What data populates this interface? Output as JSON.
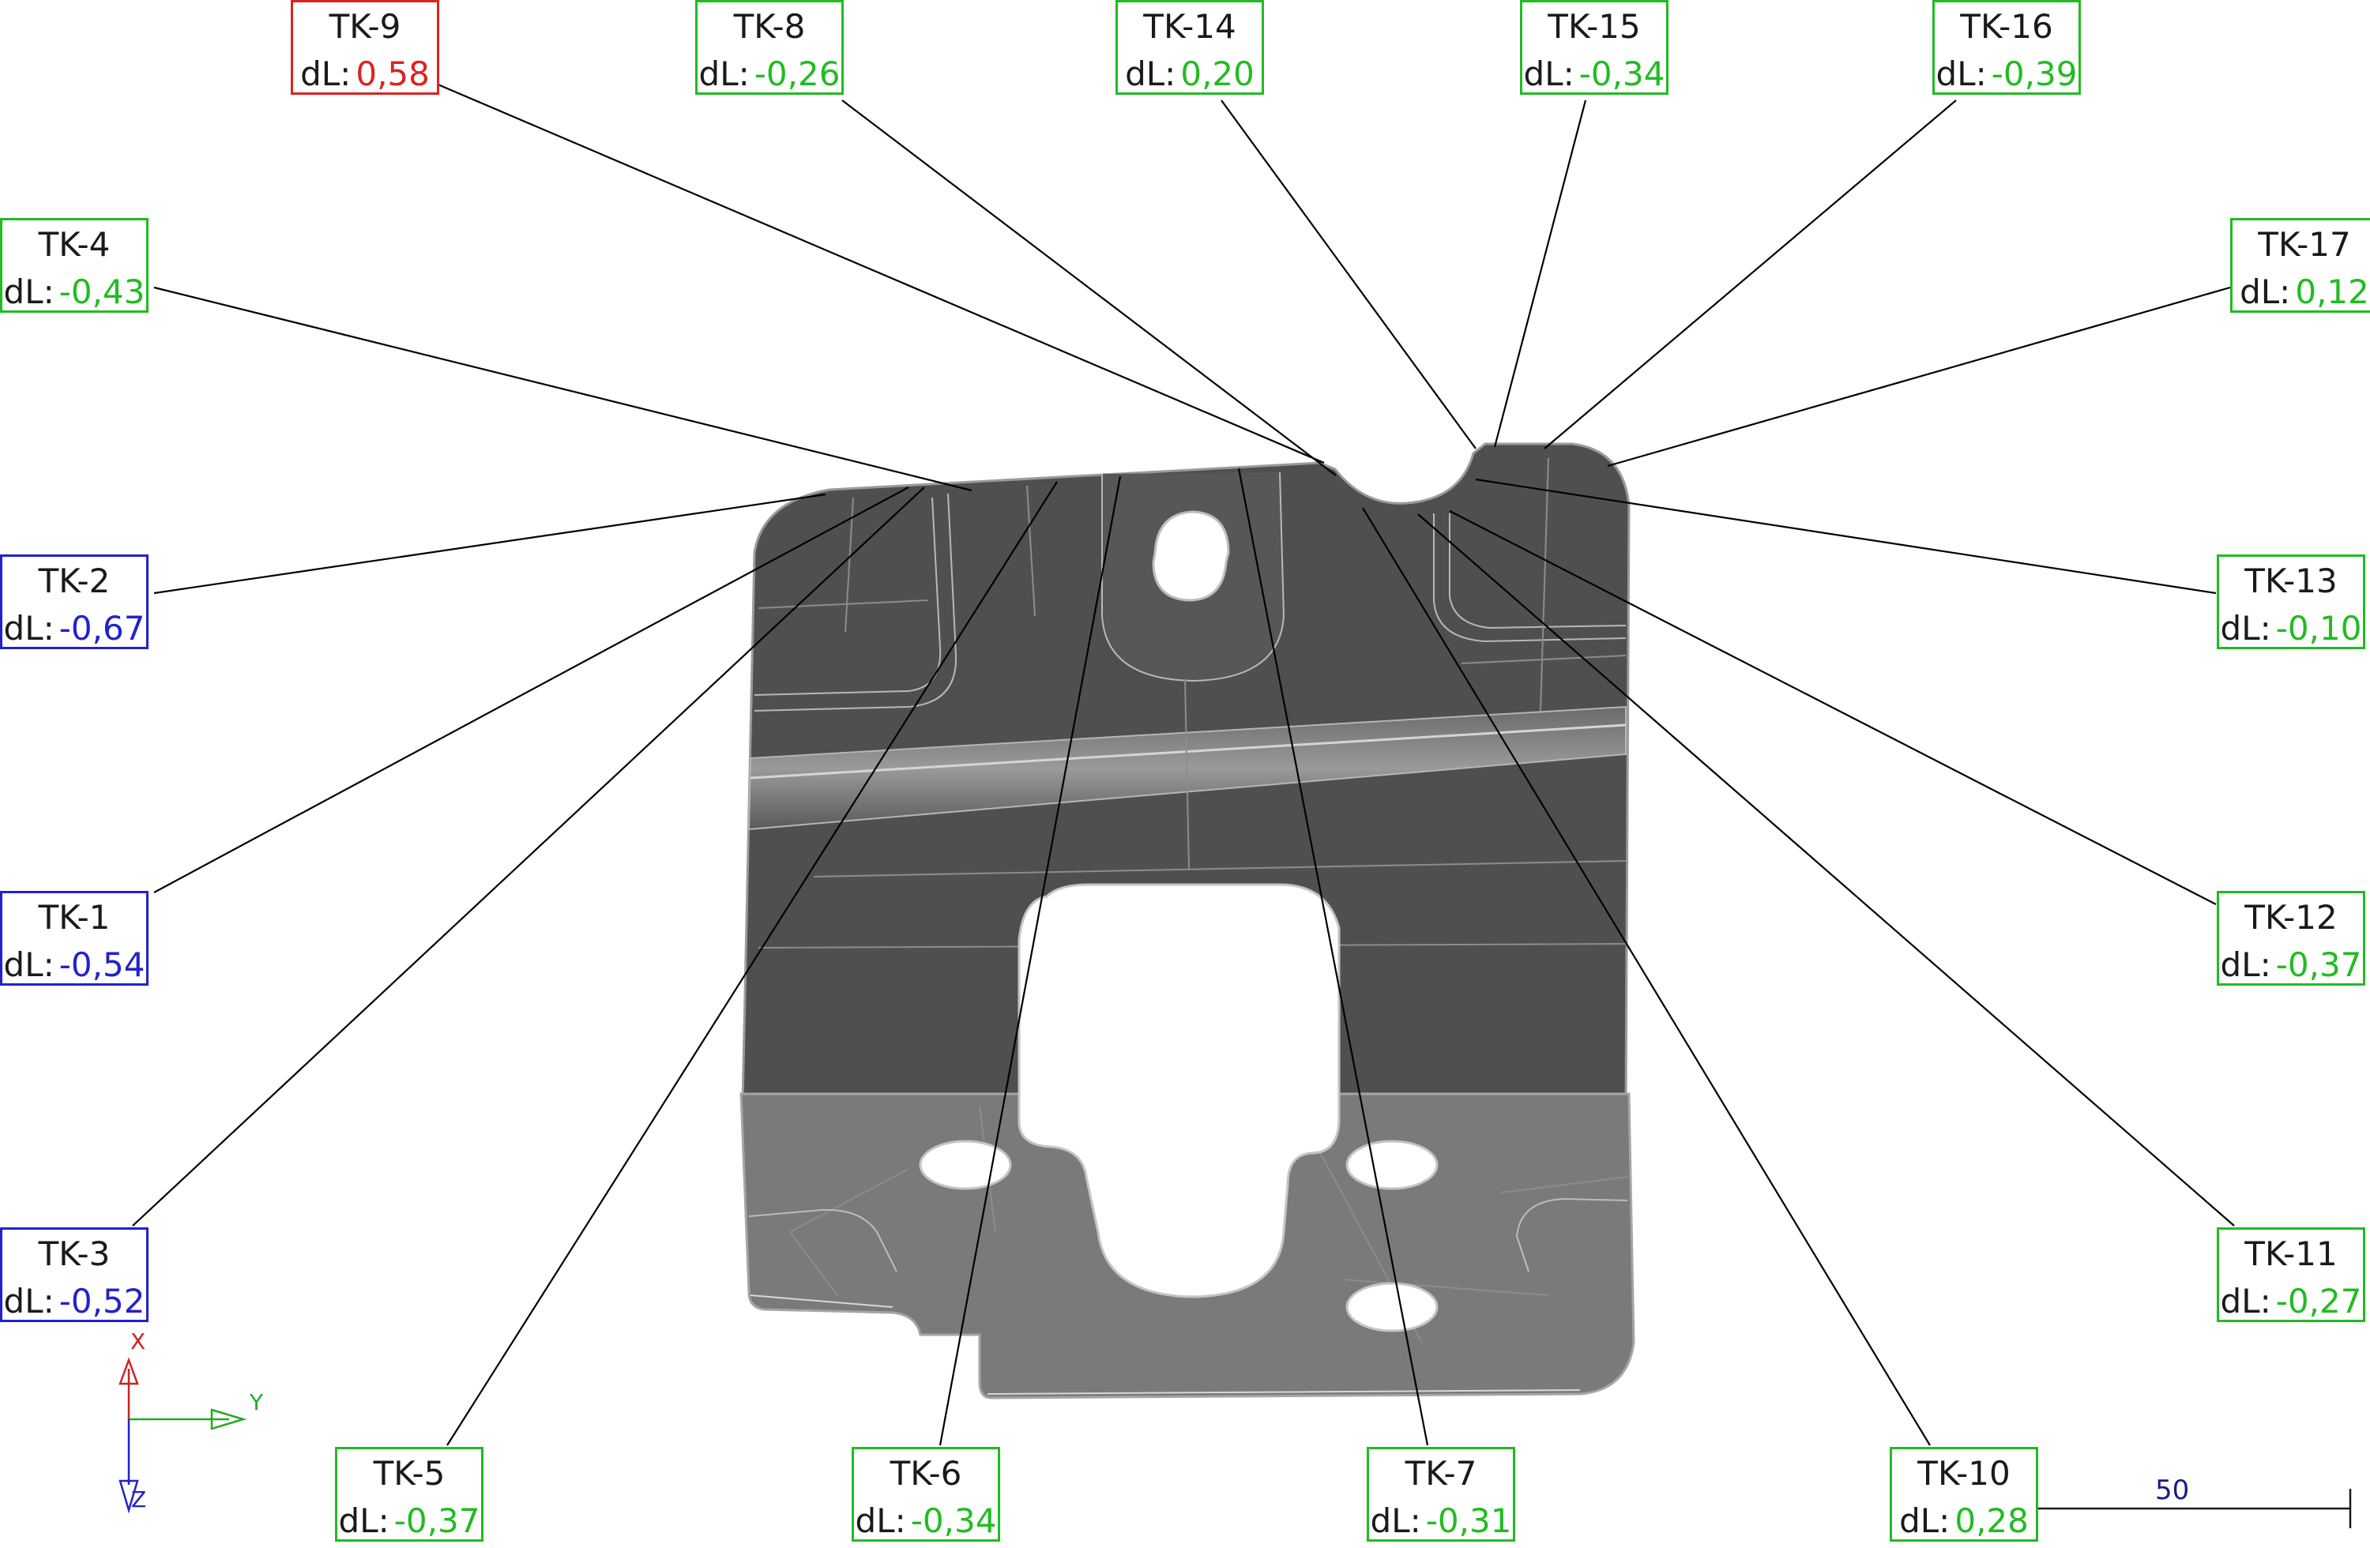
{
  "colors": {
    "ok": "#22bb22",
    "over": "#dd2222",
    "under": "#2222cc",
    "part_dark": "#4f4f4f",
    "part_light": "#7a7a7a",
    "mesh": "#9a9a9a",
    "axis_x": "#cc2222",
    "axis_y": "#22aa22",
    "axis_z": "#2222cc",
    "scale": "#1a1a88"
  },
  "callouts": [
    {
      "id": "tk-9",
      "name": "TK-9",
      "label": "dL:",
      "value": "0,58",
      "status": "over"
    },
    {
      "id": "tk-8",
      "name": "TK-8",
      "label": "dL:",
      "value": "-0,26",
      "status": "ok"
    },
    {
      "id": "tk-14",
      "name": "TK-14",
      "label": "dL:",
      "value": "0,20",
      "status": "ok"
    },
    {
      "id": "tk-15",
      "name": "TK-15",
      "label": "dL:",
      "value": "-0,34",
      "status": "ok"
    },
    {
      "id": "tk-16",
      "name": "TK-16",
      "label": "dL:",
      "value": "-0,39",
      "status": "ok"
    },
    {
      "id": "tk-4",
      "name": "TK-4",
      "label": "dL:",
      "value": "-0,43",
      "status": "ok"
    },
    {
      "id": "tk-17",
      "name": "TK-17",
      "label": "dL:",
      "value": "0,12",
      "status": "ok"
    },
    {
      "id": "tk-2",
      "name": "TK-2",
      "label": "dL:",
      "value": "-0,67",
      "status": "under"
    },
    {
      "id": "tk-13",
      "name": "TK-13",
      "label": "dL:",
      "value": "-0,10",
      "status": "ok"
    },
    {
      "id": "tk-1",
      "name": "TK-1",
      "label": "dL:",
      "value": "-0,54",
      "status": "under"
    },
    {
      "id": "tk-12",
      "name": "TK-12",
      "label": "dL:",
      "value": "-0,37",
      "status": "ok"
    },
    {
      "id": "tk-3",
      "name": "TK-3",
      "label": "dL:",
      "value": "-0,52",
      "status": "under"
    },
    {
      "id": "tk-11",
      "name": "TK-11",
      "label": "dL:",
      "value": "-0,27",
      "status": "ok"
    },
    {
      "id": "tk-5",
      "name": "TK-5",
      "label": "dL:",
      "value": "-0,37",
      "status": "ok"
    },
    {
      "id": "tk-6",
      "name": "TK-6",
      "label": "dL:",
      "value": "-0,34",
      "status": "ok"
    },
    {
      "id": "tk-7",
      "name": "TK-7",
      "label": "dL:",
      "value": "-0,31",
      "status": "ok"
    },
    {
      "id": "tk-10",
      "name": "TK-10",
      "label": "dL:",
      "value": "0,28",
      "status": "ok"
    }
  ],
  "axes": {
    "x": "X",
    "y": "Y",
    "z": "Z"
  },
  "scale_bar": {
    "label": "50"
  }
}
